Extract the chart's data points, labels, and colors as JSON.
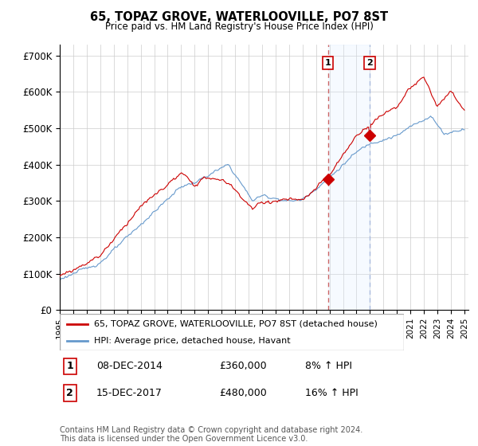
{
  "title": "65, TOPAZ GROVE, WATERLOOVILLE, PO7 8ST",
  "subtitle": "Price paid vs. HM Land Registry's House Price Index (HPI)",
  "ylim": [
    0,
    730000
  ],
  "yticks": [
    0,
    100000,
    200000,
    300000,
    400000,
    500000,
    600000,
    700000
  ],
  "ytick_labels": [
    "£0",
    "£100K",
    "£200K",
    "£300K",
    "£400K",
    "£500K",
    "£600K",
    "£700K"
  ],
  "red_line_color": "#cc0000",
  "blue_line_color": "#6699cc",
  "blue_span_color": "#ddeeff",
  "vline1_color": "#cc6666",
  "vline2_color": "#aabbdd",
  "sale1_year": 2014.92,
  "sale1_price": 360000,
  "sale2_year": 2017.95,
  "sale2_price": 480000,
  "annotation1": {
    "label": "1",
    "date": "08-DEC-2014",
    "price": "£360,000",
    "hpi": "8% ↑ HPI"
  },
  "annotation2": {
    "label": "2",
    "date": "15-DEC-2017",
    "price": "£480,000",
    "hpi": "16% ↑ HPI"
  },
  "legend_line1": "65, TOPAZ GROVE, WATERLOOVILLE, PO7 8ST (detached house)",
  "legend_line2": "HPI: Average price, detached house, Havant",
  "footer": "Contains HM Land Registry data © Crown copyright and database right 2024.\nThis data is licensed under the Open Government Licence v3.0.",
  "grid_color": "#cccccc"
}
